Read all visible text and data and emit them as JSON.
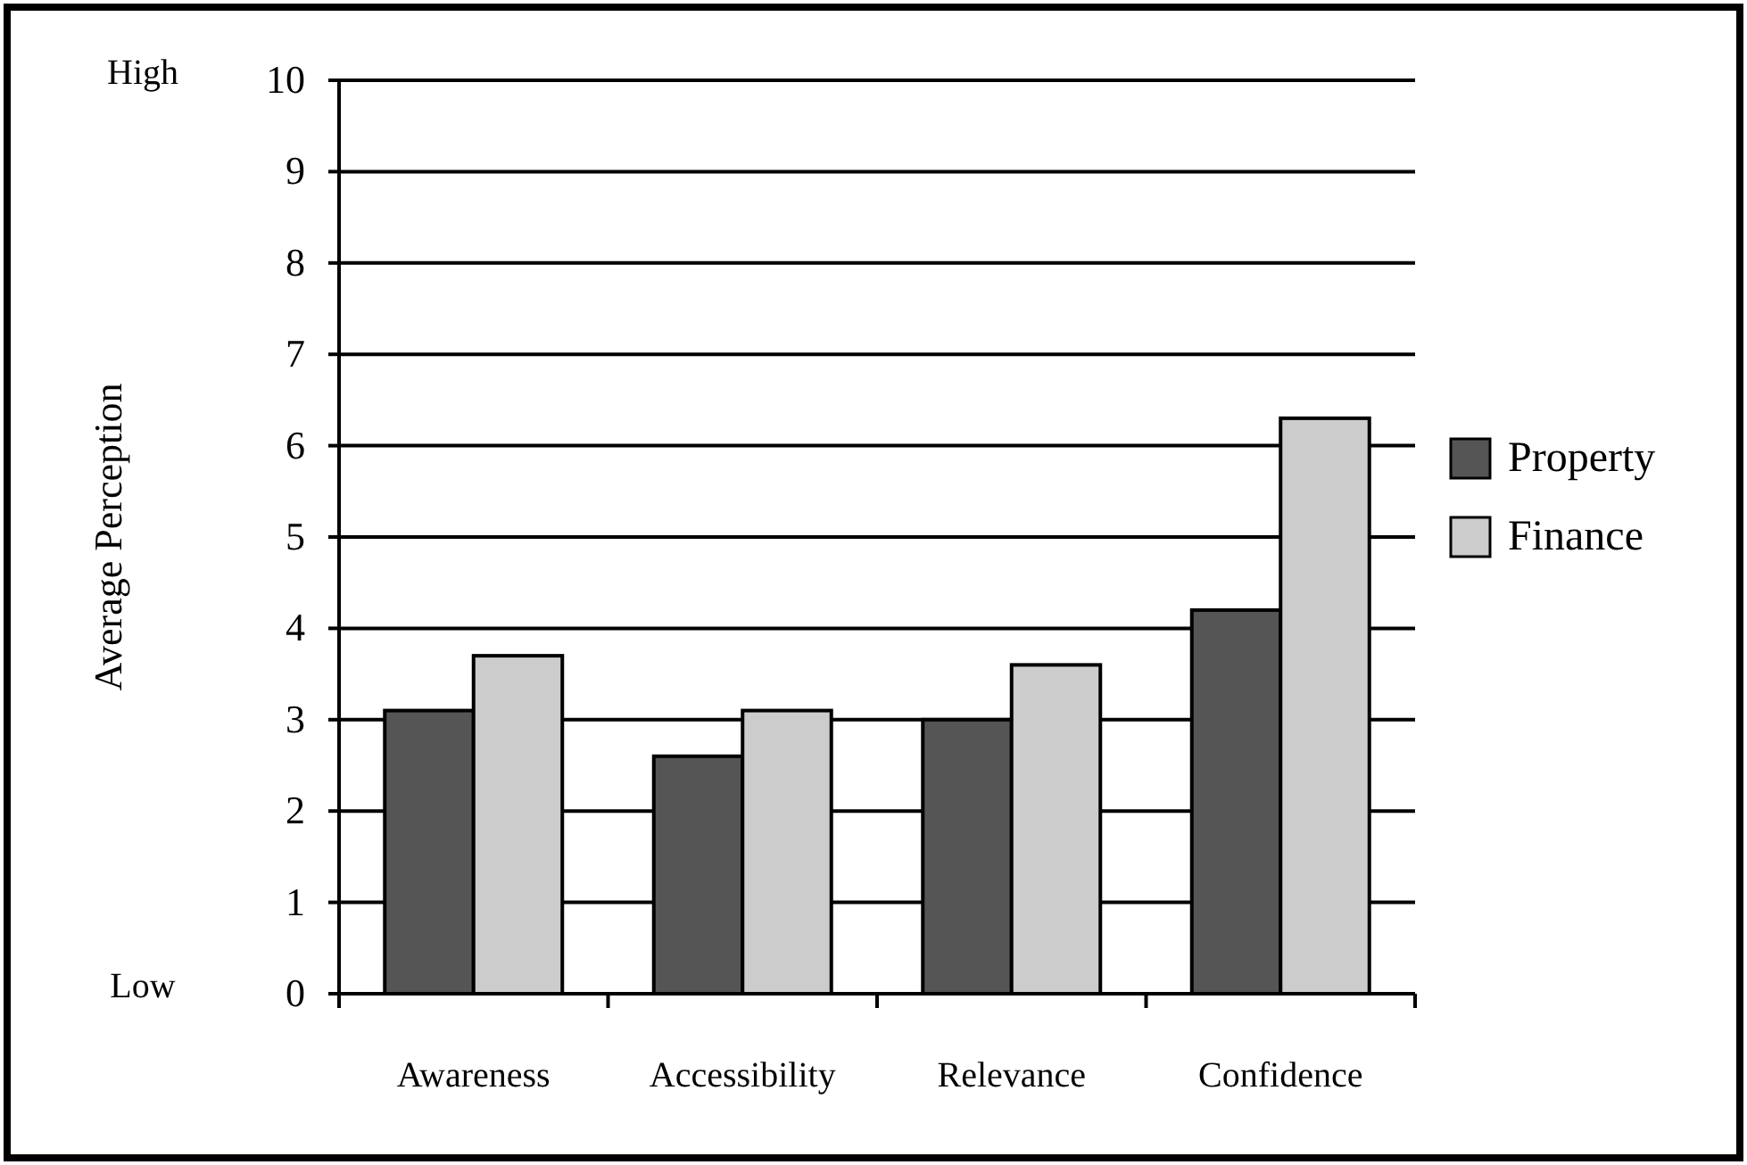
{
  "chart_data": {
    "type": "bar",
    "ylabel": "Average Perception",
    "categories": [
      "Awareness",
      "Accessibility",
      "Relevance",
      "Confidence"
    ],
    "series": [
      {
        "name": "Property",
        "color": "#555555",
        "values": [
          3.1,
          2.6,
          3.0,
          4.2
        ]
      },
      {
        "name": "Finance",
        "color": "#cccccc",
        "values": [
          3.7,
          3.1,
          3.6,
          6.3
        ]
      }
    ],
    "ylim": [
      0,
      10
    ],
    "yticks": [
      0,
      1,
      2,
      3,
      4,
      5,
      6,
      7,
      8,
      9,
      10
    ],
    "grid": "y",
    "legend": "right",
    "annotations": [
      "High",
      "Low"
    ]
  }
}
